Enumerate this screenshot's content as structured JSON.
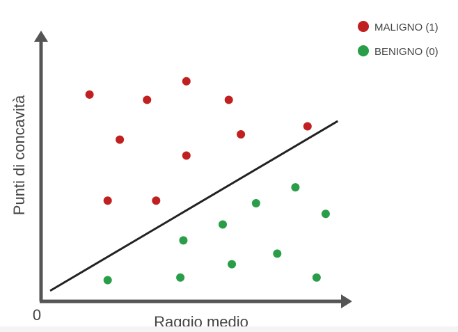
{
  "chart_data": {
    "type": "scatter",
    "title": "",
    "xlabel": "Raggio medio",
    "ylabel": "Punti di concavità",
    "origin_label": "0",
    "xlim": [
      0,
      10
    ],
    "ylim": [
      0,
      10
    ],
    "grid": false,
    "legend_position": "top-right",
    "colors": {
      "axis": "#555555",
      "boundary": "#222222",
      "text": "#444444"
    },
    "series": [
      {
        "name": "MALIGNO (1)",
        "color": "#c0201f",
        "points": [
          {
            "x": 1.6,
            "y": 7.8
          },
          {
            "x": 3.5,
            "y": 7.6
          },
          {
            "x": 4.8,
            "y": 8.3
          },
          {
            "x": 6.2,
            "y": 7.6
          },
          {
            "x": 2.6,
            "y": 6.1
          },
          {
            "x": 4.8,
            "y": 5.5
          },
          {
            "x": 6.6,
            "y": 6.3
          },
          {
            "x": 8.8,
            "y": 6.6
          },
          {
            "x": 2.2,
            "y": 3.8
          },
          {
            "x": 3.8,
            "y": 3.8
          }
        ]
      },
      {
        "name": "BENIGNO (0)",
        "color": "#2a9d48",
        "points": [
          {
            "x": 8.4,
            "y": 4.3
          },
          {
            "x": 7.1,
            "y": 3.7
          },
          {
            "x": 9.4,
            "y": 3.3
          },
          {
            "x": 6.0,
            "y": 2.9
          },
          {
            "x": 4.7,
            "y": 2.3
          },
          {
            "x": 7.8,
            "y": 1.8
          },
          {
            "x": 6.3,
            "y": 1.4
          },
          {
            "x": 2.2,
            "y": 0.8
          },
          {
            "x": 4.6,
            "y": 0.9
          },
          {
            "x": 9.1,
            "y": 0.9
          }
        ]
      }
    ],
    "decision_boundary": {
      "from": {
        "x": 0.3,
        "y": 0.4
      },
      "to": {
        "x": 9.8,
        "y": 6.8
      }
    }
  }
}
